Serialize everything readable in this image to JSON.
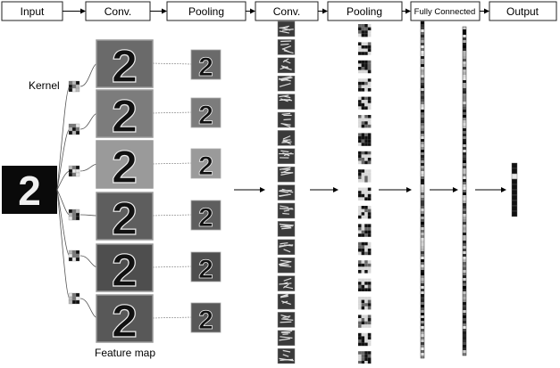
{
  "stages": [
    "Input",
    "Conv.",
    "Pooling",
    "Conv.",
    "Pooling",
    "Fully Connected",
    "Output"
  ],
  "labels": {
    "kernel": "Kernel",
    "feature_map": "Feature map"
  },
  "input": {
    "digit": "2"
  },
  "colors": {
    "line": "#000000",
    "box_border": "#222222",
    "tile_dark": "#111111",
    "tile_light": "#d8d8d8",
    "fmap_bg": [
      "#6a6a6a",
      "#7c7c7c",
      "#9a9a9a",
      "#5e5e5e",
      "#4e4e4e",
      "#585858"
    ]
  }
}
